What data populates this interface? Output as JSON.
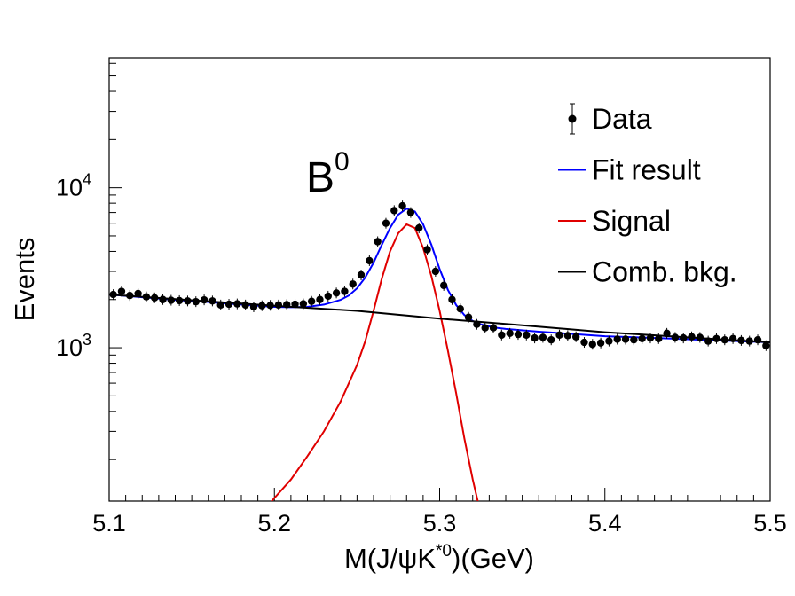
{
  "chart_data": {
    "type": "scatter",
    "title": "",
    "annotation": {
      "base": "B",
      "sup": "0"
    },
    "xlabel": {
      "pre": "M(J/ψK",
      "sup": "*0",
      "post": ")(GeV)"
    },
    "ylabel": "Events",
    "xlim": [
      5.1,
      5.5
    ],
    "ylim": [
      110,
      65000
    ],
    "yscale": "log",
    "grid": false,
    "legend_position": "top-right",
    "x_ticks": [
      "5.1",
      "5.2",
      "5.3",
      "5.4",
      "5.5"
    ],
    "y_ticks": [
      {
        "value": 1000,
        "base": "10",
        "exp": "3"
      },
      {
        "value": 10000,
        "base": "10",
        "exp": "4"
      }
    ],
    "legend": [
      {
        "label": "Data",
        "style": "marker"
      },
      {
        "label": "Fit result",
        "style": "line",
        "color": "#0000ff"
      },
      {
        "label": "Signal",
        "style": "line",
        "color": "#e00000"
      },
      {
        "label": "Comb. bkg.",
        "style": "line",
        "color": "#000000"
      }
    ],
    "series": [
      {
        "name": "Data",
        "kind": "points",
        "color": "#000000",
        "x": [
          5.1025,
          5.1075,
          5.1125,
          5.1175,
          5.1225,
          5.1275,
          5.1325,
          5.1375,
          5.1425,
          5.1475,
          5.1525,
          5.1575,
          5.1625,
          5.1675,
          5.1725,
          5.1775,
          5.1825,
          5.1875,
          5.1925,
          5.1975,
          5.2025,
          5.2075,
          5.2125,
          5.2175,
          5.2225,
          5.2275,
          5.2325,
          5.2375,
          5.2425,
          5.2475,
          5.2525,
          5.2575,
          5.2625,
          5.2675,
          5.2725,
          5.2775,
          5.2825,
          5.2875,
          5.2925,
          5.2975,
          5.3025,
          5.3075,
          5.3125,
          5.3175,
          5.3225,
          5.3275,
          5.3325,
          5.3375,
          5.3425,
          5.3475,
          5.3525,
          5.3575,
          5.3625,
          5.3675,
          5.3725,
          5.3775,
          5.3825,
          5.3875,
          5.3925,
          5.3975,
          5.4025,
          5.4075,
          5.4125,
          5.4175,
          5.4225,
          5.4275,
          5.4325,
          5.4375,
          5.4425,
          5.4475,
          5.4525,
          5.4575,
          5.4625,
          5.4675,
          5.4725,
          5.4775,
          5.4825,
          5.4875,
          5.4925,
          5.4975
        ],
        "y": [
          2150,
          2250,
          2120,
          2180,
          2080,
          2050,
          2000,
          1980,
          1970,
          1960,
          1940,
          1990,
          1960,
          1850,
          1870,
          1880,
          1850,
          1800,
          1830,
          1840,
          1850,
          1860,
          1870,
          1880,
          1950,
          2000,
          2100,
          2200,
          2250,
          2500,
          2850,
          3500,
          4600,
          6000,
          7200,
          7700,
          7000,
          5600,
          4100,
          3000,
          2450,
          2000,
          1750,
          1550,
          1400,
          1330,
          1330,
          1200,
          1230,
          1210,
          1200,
          1150,
          1160,
          1120,
          1200,
          1190,
          1170,
          1080,
          1050,
          1070,
          1100,
          1130,
          1130,
          1120,
          1140,
          1150,
          1140,
          1230,
          1160,
          1150,
          1170,
          1160,
          1100,
          1140,
          1120,
          1140,
          1110,
          1100,
          1120,
          1030
        ]
      },
      {
        "name": "Fit result",
        "kind": "line",
        "color": "#0000ff",
        "x": [
          5.1,
          5.12,
          5.14,
          5.16,
          5.18,
          5.2,
          5.21,
          5.22,
          5.23,
          5.24,
          5.245,
          5.25,
          5.255,
          5.26,
          5.265,
          5.27,
          5.275,
          5.28,
          5.285,
          5.29,
          5.295,
          5.3,
          5.305,
          5.31,
          5.315,
          5.32,
          5.325,
          5.33,
          5.335,
          5.34,
          5.36,
          5.38,
          5.4,
          5.42,
          5.44,
          5.46,
          5.48,
          5.5
        ],
        "y": [
          2150,
          2070,
          1990,
          1930,
          1860,
          1800,
          1790,
          1800,
          1860,
          1990,
          2120,
          2350,
          2750,
          3400,
          4400,
          5600,
          6800,
          7400,
          7100,
          5900,
          4400,
          3100,
          2300,
          1850,
          1600,
          1470,
          1400,
          1360,
          1330,
          1310,
          1260,
          1220,
          1180,
          1160,
          1140,
          1120,
          1100,
          1080
        ]
      },
      {
        "name": "Signal",
        "kind": "line",
        "color": "#e00000",
        "x": [
          5.195,
          5.2,
          5.21,
          5.22,
          5.23,
          5.24,
          5.25,
          5.255,
          5.26,
          5.265,
          5.27,
          5.275,
          5.28,
          5.285,
          5.29,
          5.295,
          5.3,
          5.305,
          5.31,
          5.315,
          5.32,
          5.324
        ],
        "y": [
          100,
          115,
          150,
          210,
          300,
          460,
          780,
          1100,
          1700,
          2700,
          4000,
          5200,
          5900,
          5600,
          4200,
          2800,
          1700,
          960,
          520,
          270,
          150,
          100
        ]
      },
      {
        "name": "Comb. bkg.",
        "kind": "line",
        "color": "#000000",
        "x": [
          5.1,
          5.15,
          5.2,
          5.25,
          5.3,
          5.35,
          5.4,
          5.45,
          5.5
        ],
        "y": [
          2150,
          1980,
          1830,
          1700,
          1520,
          1380,
          1250,
          1160,
          1080
        ]
      }
    ]
  }
}
